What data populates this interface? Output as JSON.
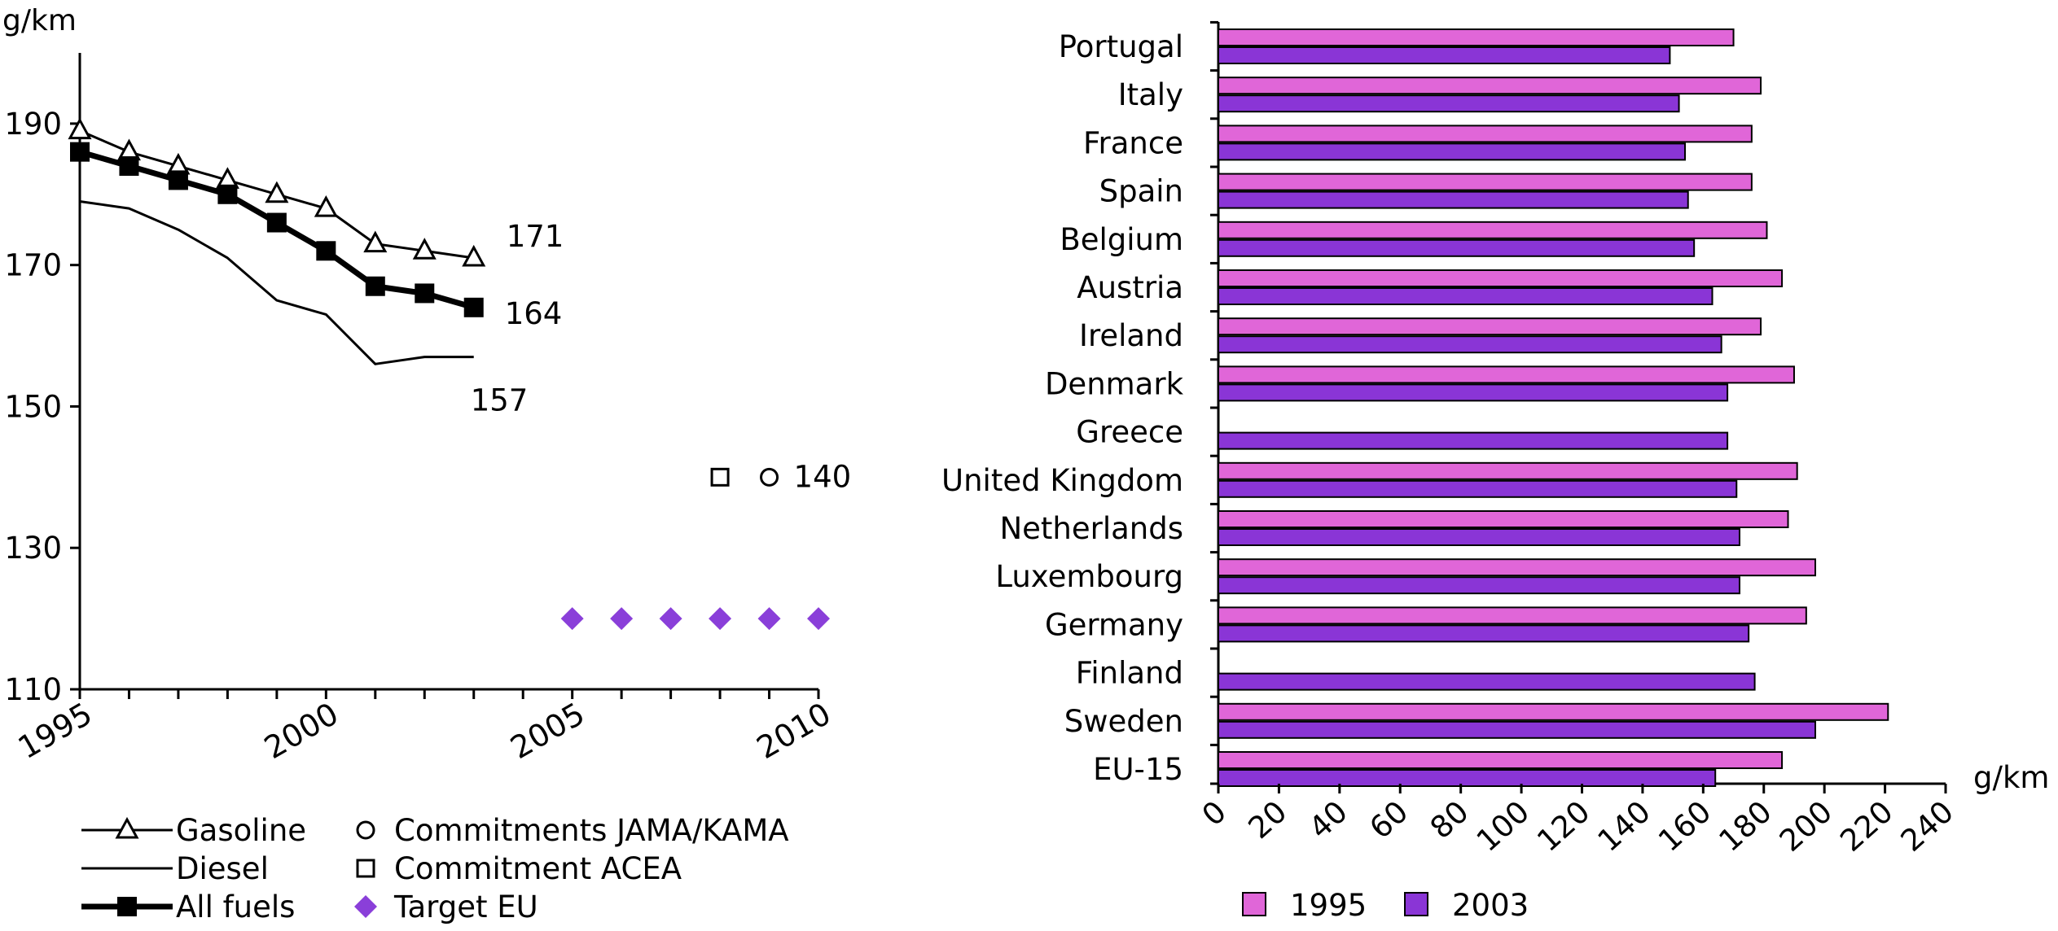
{
  "colors": {
    "axis": "#000000",
    "target_eu": "#8A3FD9",
    "bar_1995": "#E066D8",
    "bar_2003": "#8A35D6"
  },
  "chart_data": [
    {
      "type": "line",
      "ylabel": "g/km",
      "xlim": [
        1995,
        2010
      ],
      "ylim": [
        110,
        200
      ],
      "x_ticks": [
        1995,
        2000,
        2005,
        2010
      ],
      "y_ticks": [
        110,
        130,
        150,
        170,
        190
      ],
      "grid": false,
      "legend_position": "bottom",
      "series": [
        {
          "name": "Gasoline",
          "marker": "triangle-open",
          "x": [
            1995,
            1996,
            1997,
            1998,
            1999,
            2000,
            2001,
            2002,
            2003
          ],
          "y": [
            189,
            186,
            184,
            182,
            180,
            178,
            173,
            172,
            171
          ],
          "end_label": "171"
        },
        {
          "name": "Diesel",
          "marker": "none",
          "x": [
            1995,
            1996,
            1997,
            1998,
            1999,
            2000,
            2001,
            2002,
            2003
          ],
          "y": [
            179,
            178,
            175,
            171,
            165,
            163,
            156,
            157,
            157
          ],
          "end_label": "157"
        },
        {
          "name": "All fuels",
          "marker": "square-filled",
          "x": [
            1995,
            1996,
            1997,
            1998,
            1999,
            2000,
            2001,
            2002,
            2003
          ],
          "y": [
            186,
            184,
            182,
            180,
            176,
            172,
            167,
            166,
            164
          ],
          "end_label": "164"
        },
        {
          "name": "Commitments JAMA/KAMA",
          "marker": "circle-open",
          "x": [
            2009
          ],
          "y": [
            140
          ],
          "end_label": "140"
        },
        {
          "name": "Commitment ACEA",
          "marker": "square-open",
          "x": [
            2008
          ],
          "y": [
            140
          ],
          "end_label": ""
        },
        {
          "name": "Target EU",
          "marker": "diamond-filled",
          "x": [
            2005,
            2006,
            2007,
            2008,
            2009,
            2010
          ],
          "y": [
            120,
            120,
            120,
            120,
            120,
            120
          ],
          "end_label": ""
        }
      ]
    },
    {
      "type": "bar",
      "orientation": "horizontal",
      "xlabel": "g/km",
      "xlim": [
        0,
        240
      ],
      "x_ticks": [
        0,
        20,
        40,
        60,
        80,
        100,
        120,
        140,
        160,
        180,
        200,
        220,
        240
      ],
      "grid": false,
      "legend_position": "bottom-left",
      "categories": [
        "Portugal",
        "Italy",
        "France",
        "Spain",
        "Belgium",
        "Austria",
        "Ireland",
        "Denmark",
        "Greece",
        "United Kingdom",
        "Netherlands",
        "Luxembourg",
        "Germany",
        "Finland",
        "Sweden",
        "EU-15"
      ],
      "series": [
        {
          "name": "1995",
          "values": [
            170,
            179,
            176,
            176,
            181,
            186,
            179,
            190,
            null,
            191,
            188,
            197,
            194,
            null,
            221,
            186
          ]
        },
        {
          "name": "2003",
          "values": [
            149,
            152,
            154,
            155,
            157,
            163,
            166,
            168,
            168,
            171,
            172,
            172,
            175,
            177,
            197,
            164
          ]
        }
      ]
    }
  ]
}
